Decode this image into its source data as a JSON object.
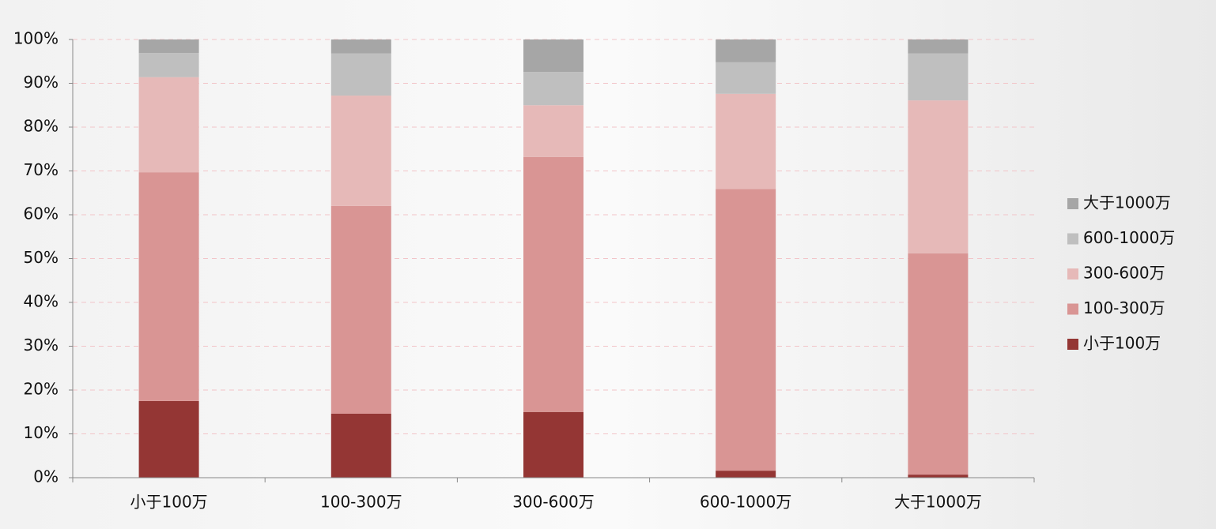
{
  "chart_data": {
    "type": "stacked-bar",
    "categories": [
      "小于100万",
      "100-300万",
      "300-600万",
      "600-1000万",
      "大于1000万"
    ],
    "series": [
      {
        "name": "小于100万",
        "color": "#943634",
        "values": [
          17.5,
          14.6,
          15.0,
          1.6,
          0.7
        ]
      },
      {
        "name": "100-300万",
        "color": "#d99594",
        "values": [
          52.2,
          47.4,
          58.2,
          64.3,
          50.5
        ]
      },
      {
        "name": "300-600万",
        "color": "#e6b9b8",
        "values": [
          21.7,
          25.2,
          11.8,
          21.7,
          34.9
        ]
      },
      {
        "name": "600-1000万",
        "color": "#bfbfbf",
        "values": [
          5.5,
          9.6,
          7.6,
          7.2,
          10.7
        ]
      },
      {
        "name": "大于1000万",
        "color": "#a6a6a6",
        "values": [
          3.1,
          3.2,
          7.4,
          5.2,
          3.2
        ]
      }
    ],
    "ylim": [
      0,
      100
    ],
    "yticks": [
      {
        "value": 0,
        "label": "0%"
      },
      {
        "value": 10,
        "label": "10%"
      },
      {
        "value": 20,
        "label": "20%"
      },
      {
        "value": 30,
        "label": "30%"
      },
      {
        "value": 40,
        "label": "40%"
      },
      {
        "value": 50,
        "label": "50%"
      },
      {
        "value": 60,
        "label": "60%"
      },
      {
        "value": 70,
        "label": "70%"
      },
      {
        "value": 80,
        "label": "80%"
      },
      {
        "value": 90,
        "label": "90%"
      },
      {
        "value": 100,
        "label": "100%"
      }
    ],
    "grid": true,
    "legend": "right"
  }
}
